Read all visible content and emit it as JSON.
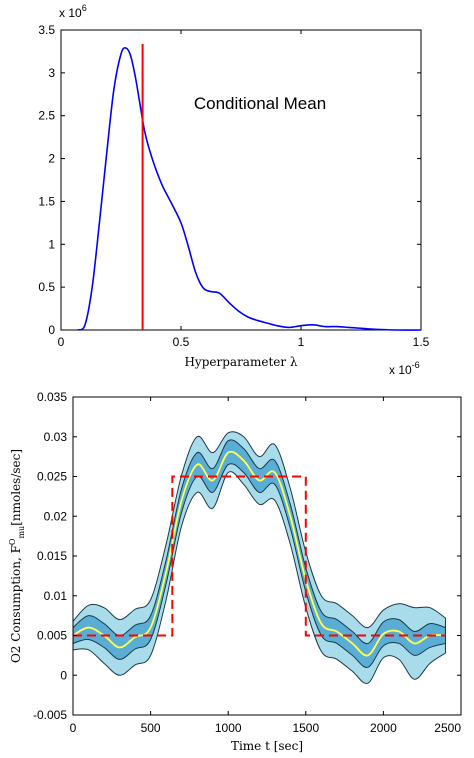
{
  "chart_data": [
    {
      "type": "line",
      "title": "",
      "annotation": "Conditional Mean",
      "xlabel": "Hyperparameter λ",
      "ylabel": "",
      "x_multiplier": "x 10",
      "x_exponent": "-6",
      "y_multiplier": "x 10",
      "y_exponent": "6",
      "xlim": [
        0,
        1.5
      ],
      "ylim": [
        0,
        3.5
      ],
      "x_ticks": [
        "0",
        "0.5",
        "1",
        "1.5"
      ],
      "y_ticks": [
        "0",
        "0.5",
        "1",
        "1.5",
        "2",
        "2.5",
        "3",
        "3.5"
      ],
      "colors": {
        "curve": "#0000ff",
        "mean_line": "#ff0000"
      },
      "conditional_mean_x": 0.34,
      "series": [
        {
          "x": [
            0.07,
            0.1,
            0.13,
            0.16,
            0.19,
            0.22,
            0.25,
            0.27,
            0.29,
            0.31,
            0.33,
            0.35,
            0.38,
            0.42,
            0.46,
            0.5,
            0.53,
            0.56,
            0.59,
            0.62,
            0.66,
            0.7,
            0.74,
            0.78,
            0.82,
            0.86,
            0.9,
            0.95,
            1.0,
            1.05,
            1.1,
            1.15,
            1.2,
            1.25,
            1.3,
            1.4,
            1.5
          ],
          "y": [
            0.0,
            0.06,
            0.5,
            1.25,
            2.05,
            2.8,
            3.22,
            3.29,
            3.2,
            2.95,
            2.62,
            2.3,
            2.0,
            1.7,
            1.48,
            1.25,
            0.98,
            0.68,
            0.5,
            0.45,
            0.43,
            0.32,
            0.22,
            0.15,
            0.11,
            0.08,
            0.05,
            0.03,
            0.05,
            0.06,
            0.04,
            0.04,
            0.03,
            0.02,
            0.01,
            0.0,
            0.0
          ]
        }
      ]
    },
    {
      "type": "line",
      "title": "",
      "xlabel": "Time t [sec]",
      "ylabel": "O2 Consumption, F",
      "ylabel_sup": "O",
      "ylabel_sub": "mu",
      "ylabel_units": "[nmoles/sec]",
      "xlim": [
        0,
        2500
      ],
      "ylim": [
        -0.005,
        0.035
      ],
      "x_ticks": [
        "0",
        "500",
        "1000",
        "1500",
        "2000",
        "2500"
      ],
      "y_ticks": [
        "-0.005",
        "0",
        "0.005",
        "0.01",
        "0.015",
        "0.02",
        "0.025",
        "0.03",
        "0.035"
      ],
      "colors": {
        "outer_band": "#a8dcea",
        "inner_band": "#5aaed6",
        "mean": "#ffff55",
        "input": "#ff0000",
        "edge": "#1a3a4a"
      },
      "x": [
        0,
        100,
        200,
        300,
        400,
        500,
        600,
        700,
        800,
        900,
        1000,
        1100,
        1200,
        1300,
        1400,
        1500,
        1600,
        1700,
        1800,
        1900,
        2000,
        2100,
        2200,
        2300,
        2400
      ],
      "mean": [
        0.005,
        0.006,
        0.005,
        0.0035,
        0.0048,
        0.006,
        0.013,
        0.022,
        0.0265,
        0.0245,
        0.028,
        0.027,
        0.0245,
        0.0255,
        0.02,
        0.012,
        0.0065,
        0.0055,
        0.004,
        0.0025,
        0.0052,
        0.0055,
        0.004,
        0.005,
        0.005
      ],
      "inner_offset": [
        0.001,
        0.0015,
        0.0015,
        0.0015,
        0.0015,
        0.0015,
        0.0015,
        0.0015,
        0.0015,
        0.0015,
        0.0015,
        0.0015,
        0.0015,
        0.0015,
        0.0015,
        0.0015,
        0.0015,
        0.0015,
        0.0015,
        0.0015,
        0.0015,
        0.0015,
        0.0015,
        0.0015,
        0.001
      ],
      "outer_offset": [
        0.0018,
        0.0028,
        0.0035,
        0.0035,
        0.0035,
        0.0035,
        0.0035,
        0.0032,
        0.0035,
        0.0035,
        0.0025,
        0.003,
        0.003,
        0.0035,
        0.0035,
        0.0035,
        0.0035,
        0.0035,
        0.0035,
        0.0035,
        0.003,
        0.0035,
        0.0045,
        0.0035,
        0.0022
      ],
      "input_signal": {
        "x": [
          0,
          640,
          640,
          1500,
          1500,
          2400
        ],
        "y": [
          0.005,
          0.005,
          0.025,
          0.025,
          0.005,
          0.005
        ]
      }
    }
  ]
}
